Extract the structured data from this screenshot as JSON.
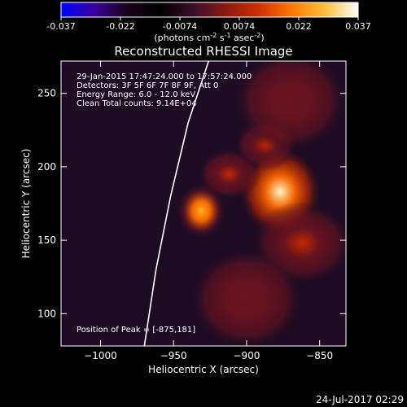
{
  "colorbar": {
    "ticks": [
      "-0.037",
      "-0.022",
      "-0.0074",
      "0.0074",
      "0.022",
      "0.037"
    ],
    "unit_parts": [
      "(photons cm",
      "-2",
      " s",
      "-1",
      " asec",
      "-2",
      ")"
    ],
    "range": [
      -0.037,
      0.037
    ],
    "stops": [
      "#0000ff",
      "#3a00a0",
      "#1a0018",
      "#000000",
      "#3a0e2a",
      "#8a1a10",
      "#d03000",
      "#ff7a00",
      "#ffc040",
      "#ffffff"
    ]
  },
  "chart_data": {
    "type": "heatmap",
    "title": "Reconstructed RHESSI Image",
    "xlabel": "Heliocentric X (arcsec)",
    "ylabel": "Heliocentric Y (arcsec)",
    "xlim": [
      -1027,
      -832
    ],
    "ylim": [
      78,
      272
    ],
    "x_ticks": [
      -1000,
      -950,
      -900,
      -850
    ],
    "x_tick_labels": [
      "−1000",
      "−950",
      "−900",
      "−850"
    ],
    "y_ticks": [
      100,
      150,
      200,
      250
    ],
    "y_tick_labels": [
      "100",
      "150",
      "200",
      "250"
    ],
    "info_lines": [
      "29-Jan-2015 17:47:24.000 to 17:57:24.000",
      "Detectors: 3F 5F 6F 7F 8F 9F, Att 0",
      "Energy Range: 6.0 - 12.0 keV",
      "Clean    Total counts: 9.14E+04"
    ],
    "peak_label": "Position of Peak = [-875,181]",
    "sources": [
      {
        "x": -877,
        "y": 183,
        "sx": 13,
        "sy": 14,
        "peak": 0.037
      },
      {
        "x": -931,
        "y": 170,
        "sx": 8,
        "sy": 9,
        "peak": 0.026
      },
      {
        "x": -912,
        "y": 195,
        "sx": 10,
        "sy": 8,
        "peak": 0.012
      },
      {
        "x": -887,
        "y": 215,
        "sx": 10,
        "sy": 8,
        "peak": 0.01
      },
      {
        "x": -862,
        "y": 148,
        "sx": 16,
        "sy": 13,
        "peak": 0.009
      },
      {
        "x": -870,
        "y": 245,
        "sx": 18,
        "sy": 16,
        "peak": 0.005
      },
      {
        "x": -900,
        "y": 110,
        "sx": 18,
        "sy": 16,
        "peak": 0.004
      }
    ],
    "limb_curve": [
      [
        -970,
        78
      ],
      [
        -962,
        130
      ],
      [
        -952,
        180
      ],
      [
        -940,
        230
      ],
      [
        -926,
        272
      ]
    ]
  },
  "footer": {
    "timestamp": "24-Jul-2017 02:29"
  }
}
